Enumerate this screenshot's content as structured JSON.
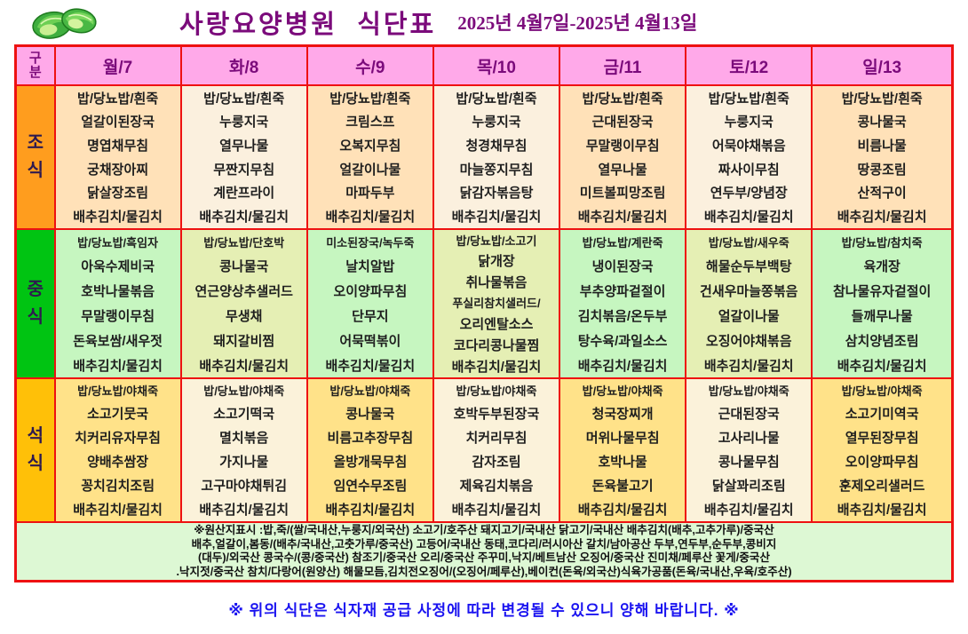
{
  "header": {
    "title": "사랑요양병원  식단표",
    "date_range": "2025년 4월7일-2025년 4월13일",
    "logo": "cabbage-clipart-icon"
  },
  "table": {
    "corner_label": "구분",
    "days": [
      "월/7",
      "화/8",
      "수/9",
      "목/10",
      "금/11",
      "토/12",
      "일/13"
    ],
    "meals": [
      {
        "label": "조식",
        "name": "breakfast",
        "columns": [
          [
            "밥/당뇨밥/흰죽",
            "얼갈이된장국",
            "명엽채무침",
            "궁채장아찌",
            "닭살장조림",
            "배추김치/물김치"
          ],
          [
            "밥/당뇨밥/흰죽",
            "누룽지국",
            "열무나물",
            "무짠지무침",
            "계란프라이",
            "배추김치/물김치"
          ],
          [
            "밥/당뇨밥/흰죽",
            "크림스프",
            "오복지무침",
            "얼갈이나물",
            "마파두부",
            "배추김치/물김치"
          ],
          [
            "밥/당뇨밥/흰죽",
            "누룽지국",
            "청경채무침",
            "마늘쫑지무침",
            "닭감자볶음탕",
            "배추김치/물김치"
          ],
          [
            "밥/당뇨밥/흰죽",
            "근대된장국",
            "무말랭이무침",
            "열무나물",
            "미트볼피망조림",
            "배추김치/물김치"
          ],
          [
            "밥/당뇨밥/흰죽",
            "누룽지국",
            "어묵야채볶음",
            "짜사이무침",
            "연두부/양념장",
            "배추김치/물김치"
          ],
          [
            "밥/당뇨밥/흰죽",
            "콩나물국",
            "비름나물",
            "땅콩조림",
            "산적구이",
            "배추김치/물김치"
          ]
        ]
      },
      {
        "label": "중식",
        "name": "lunch",
        "columns": [
          [
            "밥/당뇨밥/흑임자",
            "아욱수제비국",
            "호박나물볶음",
            "무말랭이무침",
            "돈육보쌈/새우젓",
            "배추김치/물김치"
          ],
          [
            "밥/당뇨밥/단호박",
            "콩나물국",
            "연근양상추샐러드",
            "무생채",
            "돼지갈비찜",
            "배추김치/물김치"
          ],
          [
            "미소된장국/녹두죽",
            "날치알밥",
            "오이양파무침",
            "단무지",
            "어묵떡볶이",
            "배추김치/물김치"
          ],
          [
            "밥/당뇨밥/소고기",
            "닭개장",
            "취나물볶음",
            "푸실리참치샐러드/",
            "오리엔탈소스",
            "코다리콩나물찜",
            "배추김치/물김치"
          ],
          [
            "밥/당뇨밥/계란죽",
            "냉이된장국",
            "부추양파겉절이",
            "김치볶음/온두부",
            "탕수육/과일소스",
            "배추김치/물김치"
          ],
          [
            "밥/당뇨밥/새우죽",
            "해물순두부백탕",
            "건새우마늘쫑볶음",
            "얼갈이나물",
            "오징어야채볶음",
            "배추김치/물김치"
          ],
          [
            "밥/당뇨밥/참치죽",
            "육개장",
            "참나물유자겉절이",
            "들깨무나물",
            "삼치양념조림",
            "배추김치/물김치"
          ]
        ]
      },
      {
        "label": "석식",
        "name": "dinner",
        "columns": [
          [
            "밥/당뇨밥/야채죽",
            "소고기뭇국",
            "치커리유자무침",
            "양배추쌈장",
            "꽁치김치조림",
            "배추김치/물김치"
          ],
          [
            "밥/당뇨밥/야채죽",
            "소고기떡국",
            "멸치볶음",
            "가지나물",
            "고구마야채튀김",
            "배추김치/물김치"
          ],
          [
            "밥/당뇨밥/야채죽",
            "콩나물국",
            "비름고추장무침",
            "올방개묵무침",
            "임연수무조림",
            "배추김치/물김치"
          ],
          [
            "밥/당뇨밥/야채죽",
            "호박두부된장국",
            "치커리무침",
            "감자조림",
            "제육김치볶음",
            "배추김치/물김치"
          ],
          [
            "밥/당뇨밥/야채죽",
            "청국장찌개",
            "머위나물무침",
            "호박나물",
            "돈육불고기",
            "배추김치/물김치"
          ],
          [
            "밥/당뇨밥/야채죽",
            "근대된장국",
            "고사리나물",
            "콩나물무침",
            "닭살꽈리조림",
            "배추김치/물김치"
          ],
          [
            "밥/당뇨밥/야채죽",
            "소고기미역국",
            "열무된장무침",
            "오이양파무침",
            "훈제오리샐러드",
            "배추김치/물김치"
          ]
        ]
      }
    ]
  },
  "footer": {
    "origin_lines": [
      "※원산지표시 :밥,죽/(쌀/국내산,누룽지/외국산) 소고기/호주산  돼지고기/국내산 닭고기/국내산 배추김치(배추,고추가루)/중국산",
      "배추,얼갈이,봄동/(배추/국내산,고춧가루/중국산) 고등어/국내산  동태,코다리/러시아산  갈치/남아공산  두부,연두부,순두부,콩비지",
      "(대두)/외국산 콩국수/(콩/중국산)  참조기/중국산  오리/중국산 주꾸미,낙지/베트남산 오징어/중국산 진미채/페루산  꽃게/중국산",
      ".낙지젓/중국산 참치/다랑어(원양산)  해물모듬,김치전오징어/(오징어/페루산),베이컨(돈육/외국산)식육가공품(돈육/국내산,우육/호주산)"
    ],
    "notice": "※ 위의 식단은 식자재 공급 사정에 따라 변경될 수 있으니 양해 바랍니다. ※"
  },
  "colors": {
    "border_red": "#ee1111",
    "header_pink": "#ffa9e9",
    "title_purple": "#7b0b7b",
    "breakfast_label_orange": "#ff9d1e",
    "lunch_label_green": "#00c412",
    "dinner_label_gold": "#ffc008",
    "breakfast_cell": "#ffe1b8",
    "breakfast_cell_alt": "#fbf0de",
    "lunch_cell": "#c6f6c0",
    "lunch_cell_alt": "#e5efb4",
    "dinner_cell": "#ffe289",
    "dinner_cell_alt": "#fbf2da",
    "origin_bg": "#ddf8d4",
    "notice_blue": "#1a13f0"
  }
}
